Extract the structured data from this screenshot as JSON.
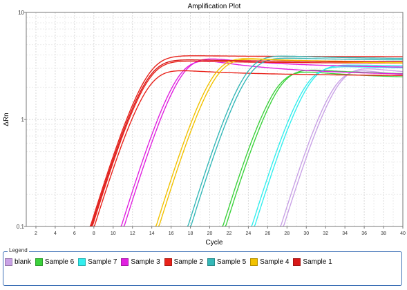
{
  "chart_data": {
    "type": "line",
    "title": "Amplification Plot",
    "xlabel": "Cycle",
    "ylabel": "ΔRn",
    "xlim": [
      1,
      40
    ],
    "ylim": [
      0.1,
      10
    ],
    "yscale": "log",
    "x_ticks": [
      2,
      4,
      6,
      8,
      10,
      12,
      14,
      16,
      18,
      20,
      22,
      24,
      26,
      28,
      30,
      32,
      34,
      36,
      38,
      40
    ],
    "y_ticks": [
      {
        "value": 0.1,
        "label": "0.1"
      },
      {
        "value": 1,
        "label": "1"
      },
      {
        "value": 10,
        "label": "10"
      }
    ],
    "grid": true,
    "series": [
      {
        "name": "blank",
        "color": "#c9a2e6",
        "curves": [
          {
            "ct": 30.0,
            "start": 27.3,
            "plateau": 2.8,
            "peak": 3.1,
            "slope": 0.295,
            "end": 2.15
          },
          {
            "ct": 30.3,
            "start": 27.6,
            "plateau": 2.9,
            "peak": 3.2,
            "slope": 0.295,
            "end": 2.4
          }
        ]
      },
      {
        "name": "Sample 6",
        "color": "#3cd23c",
        "curves": [
          {
            "ct": 23.9,
            "start": 21.3,
            "plateau": 2.7,
            "peak": 2.95,
            "slope": 0.295,
            "end": 2.35
          },
          {
            "ct": 24.2,
            "start": 21.6,
            "plateau": 2.8,
            "peak": 3.05,
            "slope": 0.295,
            "end": 2.55
          }
        ]
      },
      {
        "name": "Sample 7",
        "color": "#33eeee",
        "curves": [
          {
            "ct": 27.1,
            "start": 24.3,
            "plateau": 2.9,
            "peak": 3.2,
            "slope": 0.295,
            "end": 2.95
          },
          {
            "ct": 27.4,
            "start": 24.6,
            "plateau": 3.0,
            "peak": 3.3,
            "slope": 0.295,
            "end": 3.1
          }
        ]
      },
      {
        "name": "Sample 3",
        "color": "#e020e0",
        "curves": [
          {
            "ct": 13.5,
            "start": 10.8,
            "plateau": 3.3,
            "peak": 3.85,
            "slope": 0.295,
            "end": 2.55
          },
          {
            "ct": 13.8,
            "start": 11.1,
            "plateau": 3.5,
            "peak": 3.95,
            "slope": 0.295,
            "end": 3.0
          }
        ]
      },
      {
        "name": "Sample 2",
        "color": "#e8221a",
        "curves": [
          {
            "ct": 10.5,
            "start": 7.6,
            "plateau": 3.3,
            "peak": 4.0,
            "slope": 0.295,
            "end": 3.85
          },
          {
            "ct": 10.7,
            "start": 7.8,
            "plateau": 3.2,
            "peak": 3.6,
            "slope": 0.295,
            "end": 3.35
          },
          {
            "ct": 10.9,
            "start": 8.0,
            "plateau": 2.8,
            "peak": 3.0,
            "slope": 0.295,
            "end": 2.55
          }
        ]
      },
      {
        "name": "Sample 5",
        "color": "#35b8b8",
        "curves": [
          {
            "ct": 20.4,
            "start": 17.7,
            "plateau": 3.6,
            "peak": 4.05,
            "slope": 0.295,
            "end": 3.65
          },
          {
            "ct": 20.7,
            "start": 18.0,
            "plateau": 3.5,
            "peak": 3.85,
            "slope": 0.295,
            "end": 3.55
          }
        ]
      },
      {
        "name": "Sample 4",
        "color": "#f2c200",
        "curves": [
          {
            "ct": 16.8,
            "start": 14.4,
            "plateau": 3.6,
            "peak": 3.9,
            "slope": 0.295,
            "end": 3.3
          },
          {
            "ct": 17.1,
            "start": 14.7,
            "plateau": 3.5,
            "peak": 3.8,
            "slope": 0.295,
            "end": 3.4
          }
        ]
      },
      {
        "name": "Sample 1",
        "color": "#d81818",
        "curves": [
          {
            "ct": 10.6,
            "start": 7.7,
            "plateau": 3.6,
            "peak": 3.7,
            "slope": 0.295,
            "end": 3.45
          }
        ]
      }
    ]
  },
  "legend": {
    "title": "Legend",
    "items": [
      {
        "label": "blank",
        "color": "#c9a2e6"
      },
      {
        "label": "Sample 6",
        "color": "#3cd23c"
      },
      {
        "label": "Sample 7",
        "color": "#33eeee"
      },
      {
        "label": "Sample 3",
        "color": "#e020e0"
      },
      {
        "label": "Sample 2",
        "color": "#e8221a"
      },
      {
        "label": "Sample 5",
        "color": "#35b8b8"
      },
      {
        "label": "Sample 4",
        "color": "#f2c200"
      },
      {
        "label": "Sample 1",
        "color": "#d81818"
      }
    ]
  }
}
